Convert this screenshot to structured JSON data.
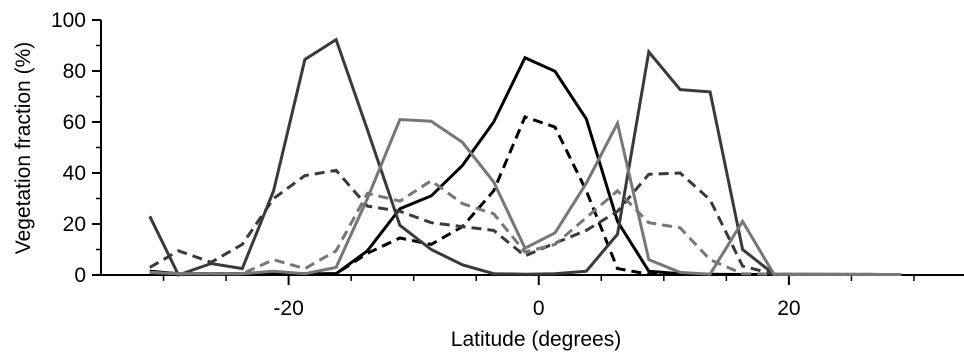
{
  "chart_data": {
    "type": "line",
    "xlabel": "Latitude (degrees)",
    "ylabel": "Vegetation fraction (%)",
    "xlim": [
      -35,
      34
    ],
    "ylim": [
      0,
      100
    ],
    "x_ticks": [
      -20,
      0,
      20
    ],
    "x_tick_labels": [
      "-20",
      "0",
      "20"
    ],
    "y_ticks": [
      0,
      20,
      40,
      60,
      80,
      100
    ],
    "y_tick_labels": [
      "0",
      "20",
      "40",
      "60",
      "80",
      "100"
    ],
    "grid": false,
    "series": [
      {
        "color": "#000000",
        "dash": "solid",
        "x": [
          -31.1,
          -28.8,
          -26.2,
          -23.7,
          -21.2,
          -18.7,
          -16.2,
          -13.7,
          -11.1,
          -8.6,
          -6.1,
          -3.6,
          -1.1,
          1.3,
          3.8,
          6.3,
          8.8,
          11.3,
          13.7,
          16.3,
          18.8,
          29.0
        ],
        "y": [
          1.5,
          0.5,
          0.5,
          0.5,
          0.5,
          0.5,
          0.5,
          9.5,
          26.0,
          31.0,
          43.0,
          60.0,
          85.2,
          79.9,
          61.2,
          21.0,
          1.5,
          0.5,
          0.3,
          0.2,
          0.2,
          0.2
        ]
      },
      {
        "color": "#000000",
        "dash": "dashed",
        "x": [
          -31.1,
          -28.8,
          -26.2,
          -23.7,
          -21.2,
          -18.7,
          -16.2,
          -13.7,
          -11.1,
          -8.6,
          -6.1,
          -3.6,
          -1.1,
          1.3,
          3.8,
          6.3,
          8.8,
          11.3,
          13.7,
          16.3,
          18.8,
          29.0
        ],
        "y": [
          1.5,
          0.5,
          0.5,
          0.5,
          0.5,
          0.5,
          0.5,
          8.5,
          14.5,
          12.0,
          19.0,
          33.0,
          62.0,
          58.0,
          33.0,
          2.5,
          0.3,
          0.2,
          0.2,
          0.2,
          0.2,
          0.2
        ]
      },
      {
        "color": "#3a3a3a",
        "dash": "solid",
        "x": [
          -31.1,
          -28.8,
          -26.2,
          -23.7,
          -21.2,
          -18.7,
          -16.2,
          -13.7,
          -11.1,
          -8.6,
          -6.1,
          -3.6,
          -1.1,
          1.3,
          3.8,
          6.3,
          8.8,
          11.3,
          13.7,
          16.3,
          18.8,
          29.0
        ],
        "y": [
          23.0,
          0.0,
          4.5,
          2.5,
          33.0,
          84.5,
          92.3,
          57.0,
          19.5,
          10.0,
          4.0,
          0.5,
          0.3,
          0.5,
          1.5,
          16.0,
          87.5,
          72.7,
          71.8,
          10.0,
          0.3,
          0.2
        ]
      },
      {
        "color": "#3a3a3a",
        "dash": "dashed",
        "x": [
          -31.1,
          -28.8,
          -26.2,
          -23.7,
          -21.2,
          -18.7,
          -16.2,
          -13.7,
          -11.1,
          -8.6,
          -6.1,
          -3.6,
          -1.1,
          1.3,
          3.8,
          6.3,
          8.8,
          11.3,
          13.7,
          16.3,
          18.8,
          29.0
        ],
        "y": [
          3.0,
          9.5,
          5.0,
          12.0,
          30.0,
          39.0,
          41.0,
          27.0,
          25.0,
          20.5,
          19.0,
          17.5,
          7.5,
          12.5,
          17.5,
          25.0,
          39.5,
          40.0,
          29.5,
          3.5,
          0.3,
          0.2
        ]
      },
      {
        "color": "#777777",
        "dash": "solid",
        "x": [
          -31.1,
          -28.8,
          -26.2,
          -23.7,
          -21.2,
          -18.7,
          -16.2,
          -13.7,
          -11.1,
          -8.6,
          -6.1,
          -3.6,
          -1.1,
          1.3,
          3.8,
          6.3,
          8.8,
          11.3,
          13.7,
          16.3,
          18.8,
          29.0
        ],
        "y": [
          1.0,
          0.5,
          0.5,
          0.5,
          1.5,
          0.5,
          3.0,
          30.0,
          61.0,
          60.3,
          52.0,
          36.5,
          10.5,
          16.5,
          36.0,
          59.5,
          6.0,
          1.0,
          0.3,
          21.0,
          0.3,
          0.2
        ]
      },
      {
        "color": "#777777",
        "dash": "dashed",
        "x": [
          -31.1,
          -28.8,
          -26.2,
          -23.7,
          -21.2,
          -18.7,
          -16.2,
          -13.7,
          -11.1,
          -8.6,
          -6.1,
          -3.6,
          -1.1,
          1.3,
          3.8,
          6.3,
          8.8,
          11.3,
          13.7,
          16.3,
          18.8,
          29.0
        ],
        "y": [
          1.0,
          0.5,
          0.5,
          0.5,
          6.0,
          2.5,
          9.5,
          32.0,
          29.0,
          37.0,
          28.0,
          24.0,
          9.0,
          12.0,
          22.5,
          33.0,
          20.5,
          18.5,
          6.0,
          0.5,
          0.3,
          0.2
        ]
      }
    ]
  }
}
